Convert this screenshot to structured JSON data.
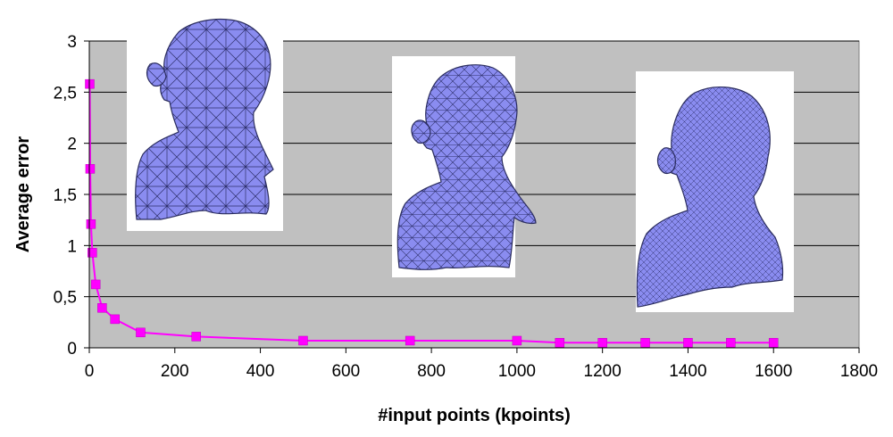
{
  "chart_data": {
    "type": "line",
    "title": "",
    "xlabel": "#input points (kpoints)",
    "ylabel": "Average error",
    "xlim": [
      0,
      1800
    ],
    "ylim": [
      0,
      3
    ],
    "x_ticks": [
      0,
      200,
      400,
      600,
      800,
      1000,
      1200,
      1400,
      1600,
      1800
    ],
    "y_ticks": [
      0,
      0.5,
      1,
      1.5,
      2,
      2.5,
      3
    ],
    "y_tick_labels": [
      "0",
      "0,5",
      "1",
      "1,5",
      "2",
      "2,5",
      "3"
    ],
    "grid": "horizontal",
    "legend": "none",
    "plot_background": "#c0c0c0",
    "series_color": "#ff00ff",
    "series": [
      {
        "x": [
          1,
          2,
          4,
          7,
          15,
          30,
          60,
          120,
          250,
          500,
          750,
          1000,
          1100,
          1200,
          1300,
          1400,
          1500,
          1600
        ],
        "y": [
          2.58,
          1.75,
          1.21,
          0.93,
          0.62,
          0.39,
          0.28,
          0.15,
          0.11,
          0.07,
          0.07,
          0.07,
          0.05,
          0.05,
          0.05,
          0.05,
          0.05,
          0.05
        ]
      }
    ],
    "insets": [
      {
        "name": "bust-mesh-coarse"
      },
      {
        "name": "bust-mesh-medium"
      },
      {
        "name": "bust-mesh-fine"
      }
    ]
  }
}
